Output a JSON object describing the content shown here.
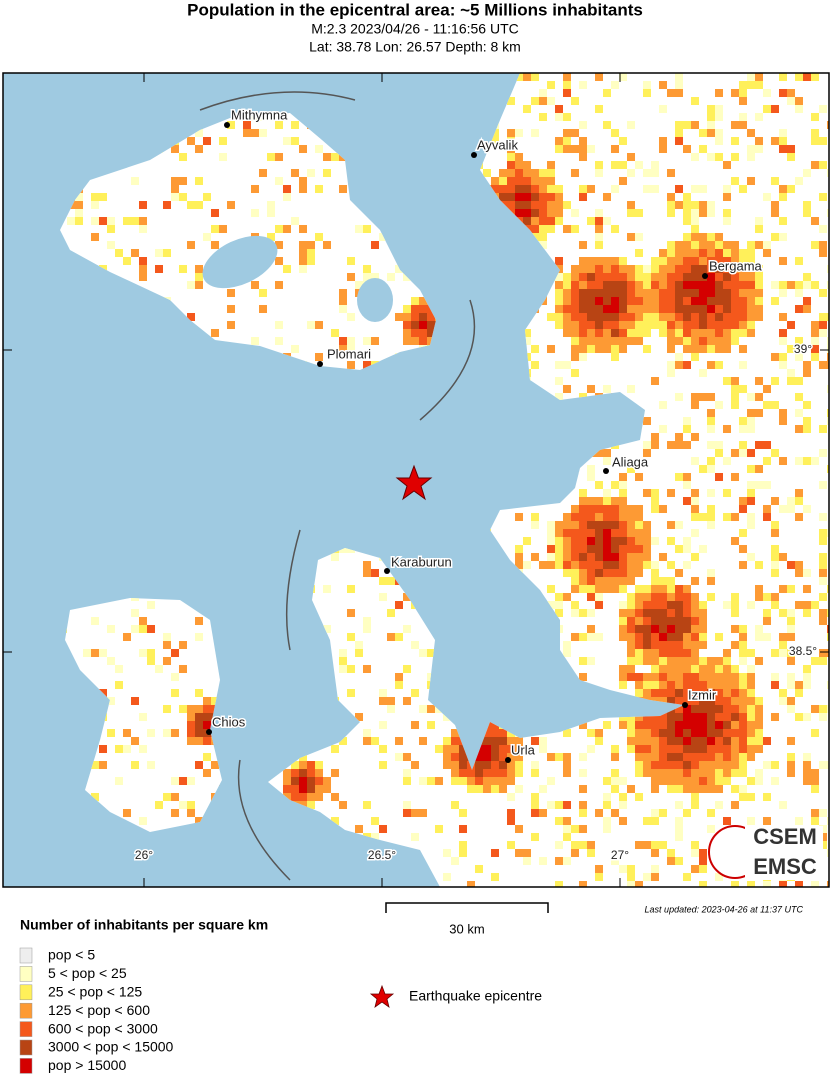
{
  "header": {
    "title": "Population in the epicentral area: ~5 Millions inhabitants",
    "event": "M:2.3 2023/04/26 - 11:16:56 UTC",
    "location": "Lat: 38.78 Lon: 26.57 Depth: 8 km"
  },
  "map": {
    "cities": [
      "Mithymna",
      "Ayvalik",
      "Bergama",
      "Plomari",
      "Aliaga",
      "Karaburun",
      "Chios",
      "Izmir",
      "Urla"
    ],
    "lon_labels": [
      "26°",
      "26.5°",
      "27°"
    ],
    "lat_labels": [
      "39°",
      "38.5°"
    ],
    "scale": "30 km",
    "updated": "Last updated: 2023-04-26 at 11:37 UTC",
    "logo": [
      "CSEM",
      "EMSC"
    ]
  },
  "legend": {
    "title": "Number of inhabitants per square km",
    "items": [
      {
        "label": "pop < 5",
        "color": "#eeeeee"
      },
      {
        "label": "5 < pop < 25",
        "color": "#ffffc2"
      },
      {
        "label": "25 < pop < 125",
        "color": "#fff05a"
      },
      {
        "label": "125 < pop < 600",
        "color": "#fd9a34"
      },
      {
        "label": "600 < pop < 3000",
        "color": "#f4581c"
      },
      {
        "label": "3000 < pop < 15000",
        "color": "#b84414"
      },
      {
        "label": "pop > 15000",
        "color": "#d40000"
      }
    ],
    "epicentre": "Earthquake epicentre"
  }
}
